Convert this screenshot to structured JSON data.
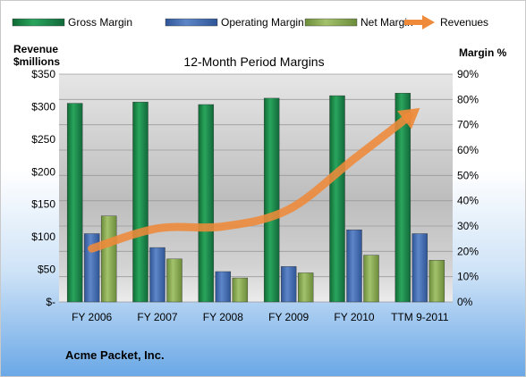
{
  "chart_data": {
    "type": "bar",
    "title": "12-Month Period Margins",
    "categories": [
      "FY 2006",
      "FY 2007",
      "FY 2008",
      "FY 2009",
      "FY 2010",
      "TTM 9-2011"
    ],
    "left_axis": {
      "label_line1": "Revenue",
      "label_line2": "$millions",
      "ticks": [
        "$350",
        "$300",
        "$250",
        "$200",
        "$150",
        "$100",
        "$50",
        "$-"
      ],
      "ylim": [
        0,
        350
      ]
    },
    "right_axis": {
      "label": "Margin %",
      "ticks": [
        "90%",
        "80%",
        "70%",
        "60%",
        "50%",
        "40%",
        "30%",
        "20%",
        "10%",
        "0%"
      ],
      "ylim": [
        0,
        90
      ]
    },
    "series": [
      {
        "name": "Gross Margin",
        "axis": "right",
        "color": "#1e8a4a",
        "values": [
          78.5,
          79,
          78,
          80.5,
          81.5,
          82.5
        ]
      },
      {
        "name": "Operating Margin",
        "axis": "right",
        "color": "#4a6fb5",
        "values": [
          27,
          21.5,
          12,
          14,
          28.5,
          27
        ]
      },
      {
        "name": "Net Margin",
        "axis": "right",
        "color": "#8fb05a",
        "values": [
          34,
          17,
          9.5,
          11.5,
          18.5,
          16.5
        ]
      },
      {
        "name": "Revenues",
        "axis": "left",
        "type": "line",
        "color": "#ee8a3a",
        "values": [
          82,
          113,
          116,
          142,
          220,
          298
        ]
      }
    ],
    "grid": true,
    "legend_position": "top"
  },
  "footer": {
    "company": "Acme Packet, Inc."
  }
}
